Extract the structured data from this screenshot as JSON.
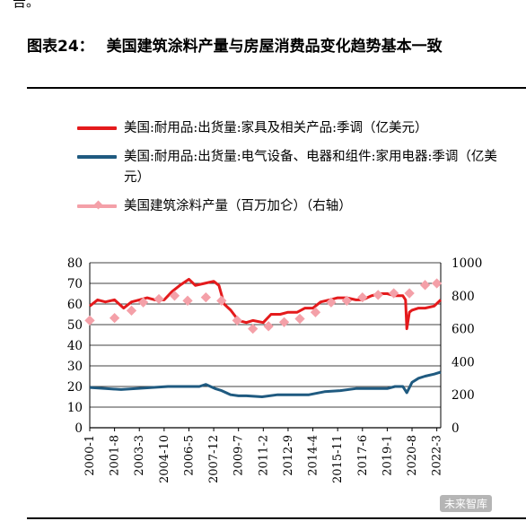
{
  "header_fragment": "告。",
  "figure": {
    "label": "图表24：",
    "title": "美国建筑涂料产量与房屋消费品变化趋势基本一致"
  },
  "colors": {
    "furniture": "#e41a1c",
    "electrical": "#1f5a80",
    "coatings": "#f4a0a8",
    "grid": "#000000"
  },
  "watermark": "未来智库",
  "chart_data": {
    "type": "line",
    "legend_position": "top",
    "grid": true,
    "y_left": {
      "ticks": [
        0,
        10,
        20,
        30,
        40,
        50,
        60,
        70,
        80
      ],
      "ylim": [
        0,
        80
      ]
    },
    "y_right": {
      "ticks": [
        0,
        200,
        400,
        600,
        800,
        1000
      ],
      "ylim": [
        0,
        1000
      ]
    },
    "x_ticks": [
      "2000-1",
      "2001-8",
      "2003-3",
      "2004-10",
      "2006-5",
      "2007-12",
      "2009-7",
      "2011-2",
      "2012-9",
      "2014-4",
      "2015-11",
      "2017-6",
      "2019-1",
      "2020-8",
      "2022-3"
    ],
    "x_range": [
      "2000-1",
      "2022-6"
    ],
    "series": [
      {
        "name": "美国:耐用品:出货量:家具及相关产品:季调（亿美元）",
        "axis": "left",
        "style": "line",
        "x": [
          "2000-1",
          "2000-7",
          "2001-1",
          "2001-8",
          "2002-3",
          "2002-9",
          "2003-3",
          "2003-9",
          "2004-3",
          "2004-10",
          "2005-4",
          "2005-10",
          "2006-5",
          "2006-10",
          "2007-5",
          "2007-12",
          "2008-4",
          "2008-8",
          "2009-1",
          "2009-7",
          "2010-1",
          "2010-6",
          "2011-2",
          "2011-8",
          "2012-3",
          "2012-9",
          "2013-4",
          "2013-10",
          "2014-4",
          "2014-10",
          "2015-5",
          "2015-11",
          "2016-6",
          "2017-1",
          "2017-6",
          "2018-1",
          "2018-7",
          "2019-1",
          "2019-7",
          "2020-1",
          "2020-3",
          "2020-4",
          "2020-6",
          "2020-8",
          "2021-1",
          "2021-6",
          "2022-1",
          "2022-6"
        ],
        "values": [
          59,
          62,
          61,
          62,
          58,
          61,
          62,
          63,
          62,
          62,
          66,
          69,
          72,
          69,
          70,
          71,
          69,
          60,
          57,
          52,
          51,
          52,
          51,
          55,
          55,
          56,
          56,
          58,
          58,
          61,
          62,
          63,
          63,
          62,
          62,
          64,
          65,
          65,
          64,
          64,
          62,
          48,
          56,
          57,
          58,
          58,
          59,
          62
        ]
      },
      {
        "name": "美国:耐用品:出货量:电气设备、电器和组件:家用电器:季调（亿美元）",
        "axis": "left",
        "style": "line",
        "x": [
          "2000-1",
          "2001-1",
          "2002-1",
          "2003-1",
          "2004-1",
          "2005-1",
          "2006-1",
          "2007-1",
          "2007-6",
          "2008-1",
          "2008-6",
          "2009-1",
          "2009-7",
          "2010-1",
          "2011-1",
          "2012-1",
          "2013-1",
          "2014-1",
          "2015-1",
          "2016-1",
          "2017-1",
          "2018-1",
          "2019-1",
          "2019-7",
          "2020-1",
          "2020-4",
          "2020-8",
          "2021-1",
          "2021-6",
          "2022-1",
          "2022-6"
        ],
        "values": [
          19.5,
          19,
          18.5,
          19,
          19.5,
          20,
          20,
          20,
          21,
          19,
          18,
          16,
          15.5,
          15.5,
          15,
          16,
          16,
          16,
          17.5,
          18,
          19,
          19,
          19,
          20,
          20,
          17,
          22,
          24,
          25,
          26,
          27
        ]
      },
      {
        "name": "美国建筑涂料产量（百万加仑）（右轴）",
        "axis": "right",
        "style": "markers",
        "x": [
          "2000-1",
          "2001-8",
          "2002-9",
          "2003-6",
          "2004-6",
          "2005-6",
          "2006-4",
          "2007-6",
          "2008-6",
          "2009-6",
          "2010-6",
          "2011-6",
          "2012-6",
          "2013-6",
          "2014-6",
          "2015-6",
          "2016-6",
          "2017-6",
          "2018-6",
          "2019-6",
          "2020-6",
          "2021-6",
          "2022-3"
        ],
        "values": [
          650,
          665,
          710,
          760,
          780,
          800,
          770,
          790,
          770,
          650,
          600,
          615,
          640,
          660,
          700,
          760,
          770,
          790,
          805,
          815,
          815,
          865,
          875
        ]
      }
    ]
  }
}
